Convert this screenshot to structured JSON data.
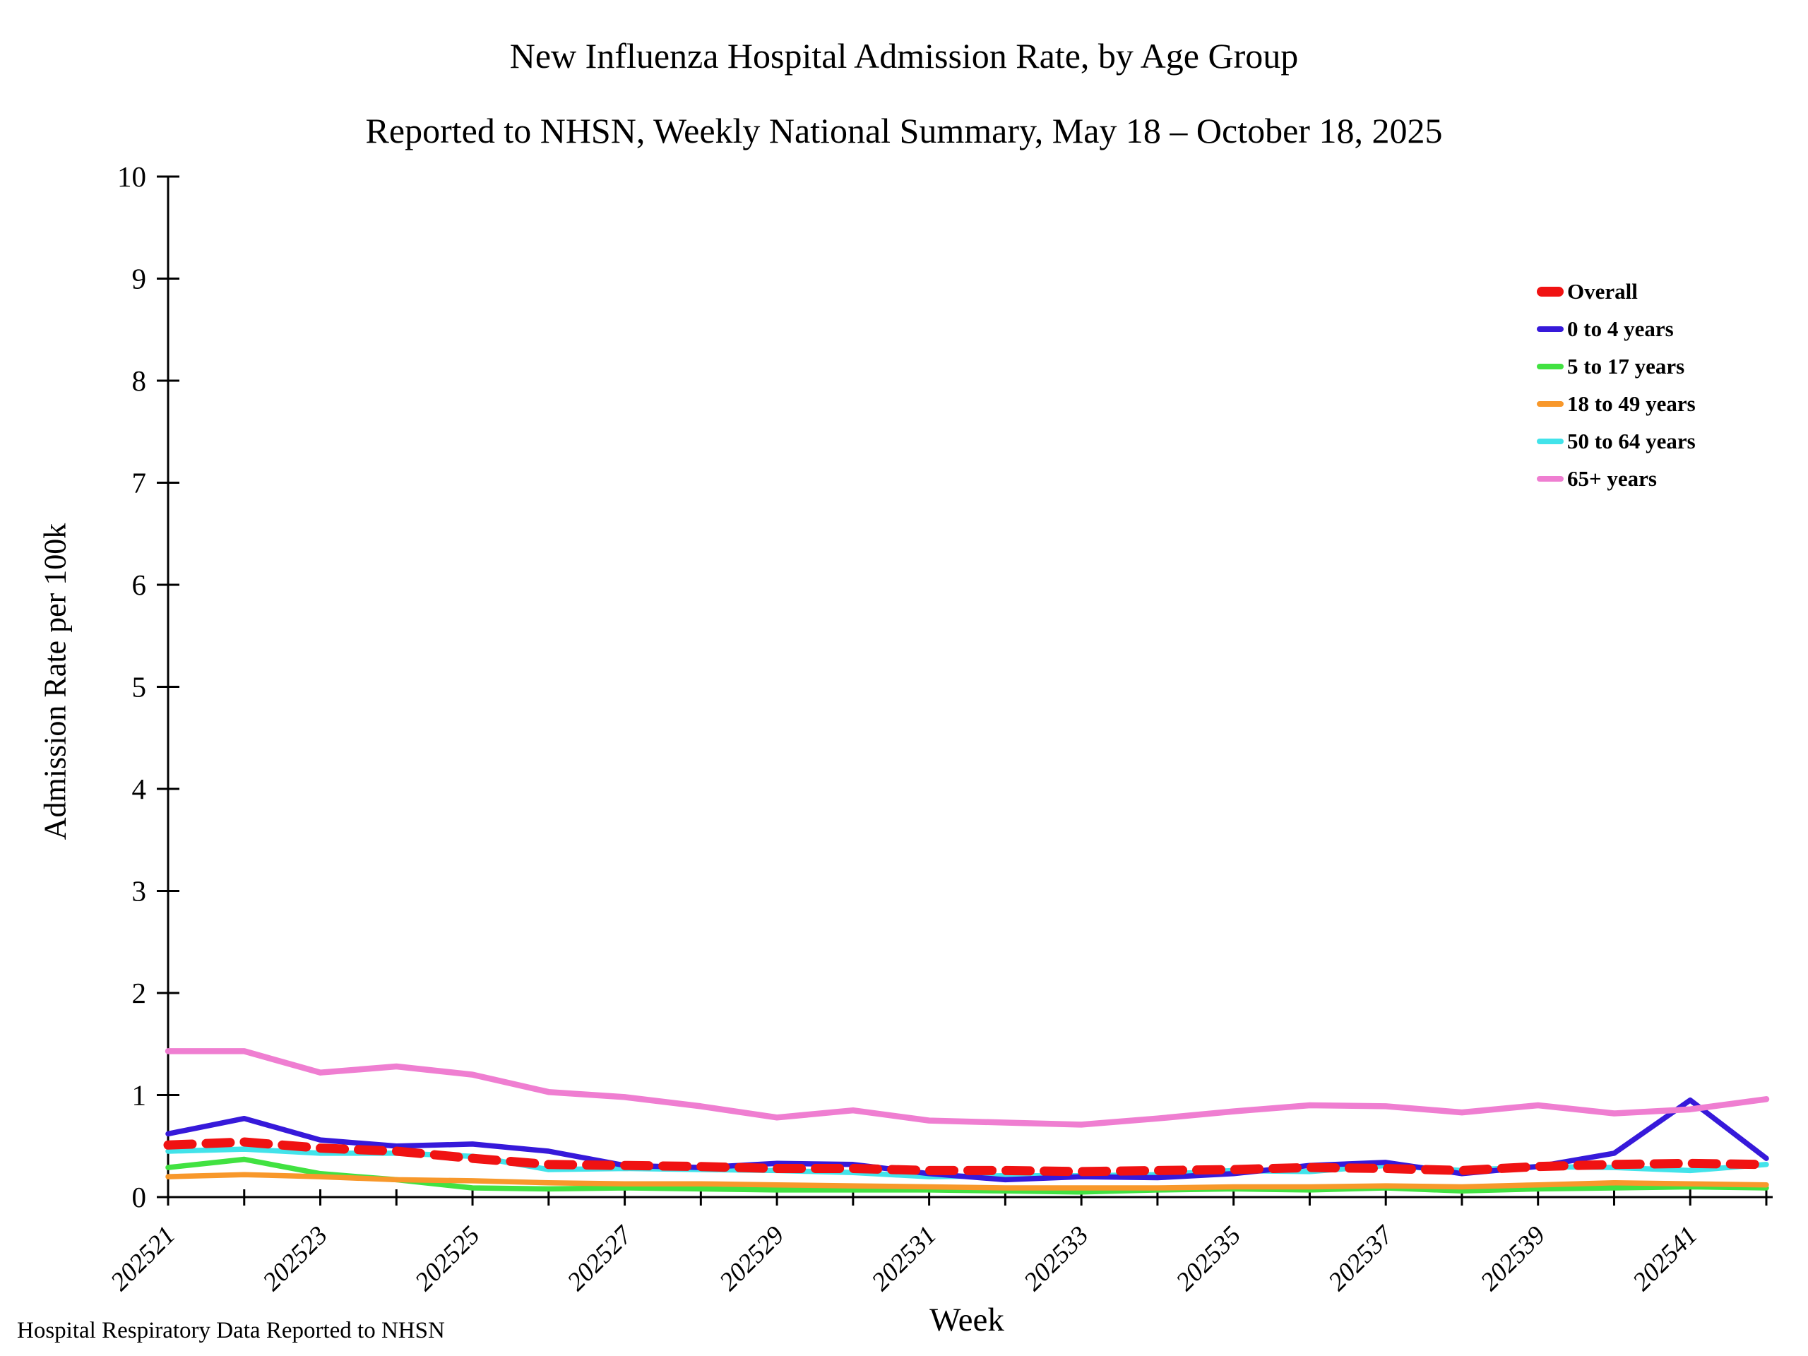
{
  "title": {
    "line1": "New Influenza Hospital Admission Rate, by Age Group",
    "line2": "Reported to NHSN, Weekly National Summary, May 18 – October 18, 2025"
  },
  "footer": "Hospital Respiratory Data Reported to NHSN",
  "chart_data": {
    "type": "line",
    "title": "New Influenza Hospital Admission Rate, by Age Group",
    "subtitle": "Reported to NHSN, Weekly National Summary, May 18 – October 18, 2025",
    "xlabel": "Week",
    "ylabel": "Admission Rate per 100k",
    "ylim": [
      0,
      10
    ],
    "grid": false,
    "legend_position": "upper right",
    "y_ticks": [
      0,
      1,
      2,
      3,
      4,
      5,
      6,
      7,
      8,
      9,
      10
    ],
    "weeks": [
      "202521",
      "202522",
      "202523",
      "202524",
      "202525",
      "202526",
      "202527",
      "202528",
      "202529",
      "202530",
      "202531",
      "202532",
      "202533",
      "202534",
      "202535",
      "202536",
      "202537",
      "202538",
      "202539",
      "202540",
      "202541",
      "202542"
    ],
    "x_tick_labels_shown": [
      "202521",
      "202523",
      "202525",
      "202527",
      "202529",
      "202531",
      "202533",
      "202535",
      "202537",
      "202539",
      "202541"
    ],
    "series": [
      {
        "name": "Overall",
        "color": "#f01212",
        "dashed": true,
        "values": [
          0.51,
          0.54,
          0.48,
          0.45,
          0.38,
          0.32,
          0.31,
          0.3,
          0.28,
          0.28,
          0.26,
          0.26,
          0.25,
          0.26,
          0.27,
          0.29,
          0.28,
          0.26,
          0.3,
          0.32,
          0.33,
          0.32
        ]
      },
      {
        "name": "0 to 4 years",
        "color": "#3619da",
        "dashed": false,
        "values": [
          0.62,
          0.77,
          0.56,
          0.5,
          0.52,
          0.45,
          0.31,
          0.29,
          0.33,
          0.32,
          0.23,
          0.17,
          0.2,
          0.19,
          0.23,
          0.31,
          0.34,
          0.23,
          0.3,
          0.43,
          0.95,
          0.38
        ]
      },
      {
        "name": "5 to 17 years",
        "color": "#41e241",
        "dashed": false,
        "values": [
          0.29,
          0.37,
          0.23,
          0.17,
          0.09,
          0.08,
          0.09,
          0.08,
          0.07,
          0.07,
          0.07,
          0.06,
          0.05,
          0.07,
          0.08,
          0.07,
          0.09,
          0.06,
          0.08,
          0.09,
          0.1,
          0.09
        ]
      },
      {
        "name": "18 to 49 years",
        "color": "#f8982b",
        "dashed": false,
        "values": [
          0.2,
          0.22,
          0.2,
          0.17,
          0.16,
          0.14,
          0.13,
          0.13,
          0.12,
          0.11,
          0.1,
          0.09,
          0.09,
          0.09,
          0.1,
          0.1,
          0.11,
          0.1,
          0.12,
          0.14,
          0.13,
          0.12
        ]
      },
      {
        "name": "50 to 64 years",
        "color": "#42e3ea",
        "dashed": false,
        "values": [
          0.45,
          0.47,
          0.43,
          0.43,
          0.4,
          0.27,
          0.28,
          0.27,
          0.26,
          0.24,
          0.2,
          0.21,
          0.21,
          0.22,
          0.26,
          0.25,
          0.31,
          0.26,
          0.3,
          0.29,
          0.26,
          0.32
        ]
      },
      {
        "name": "65+ years",
        "color": "#ef7ed1",
        "dashed": false,
        "values": [
          1.43,
          1.43,
          1.22,
          1.28,
          1.2,
          1.03,
          0.98,
          0.89,
          0.78,
          0.85,
          0.75,
          0.73,
          0.71,
          0.77,
          0.84,
          0.9,
          0.89,
          0.83,
          0.9,
          0.82,
          0.86,
          0.96
        ]
      }
    ]
  }
}
